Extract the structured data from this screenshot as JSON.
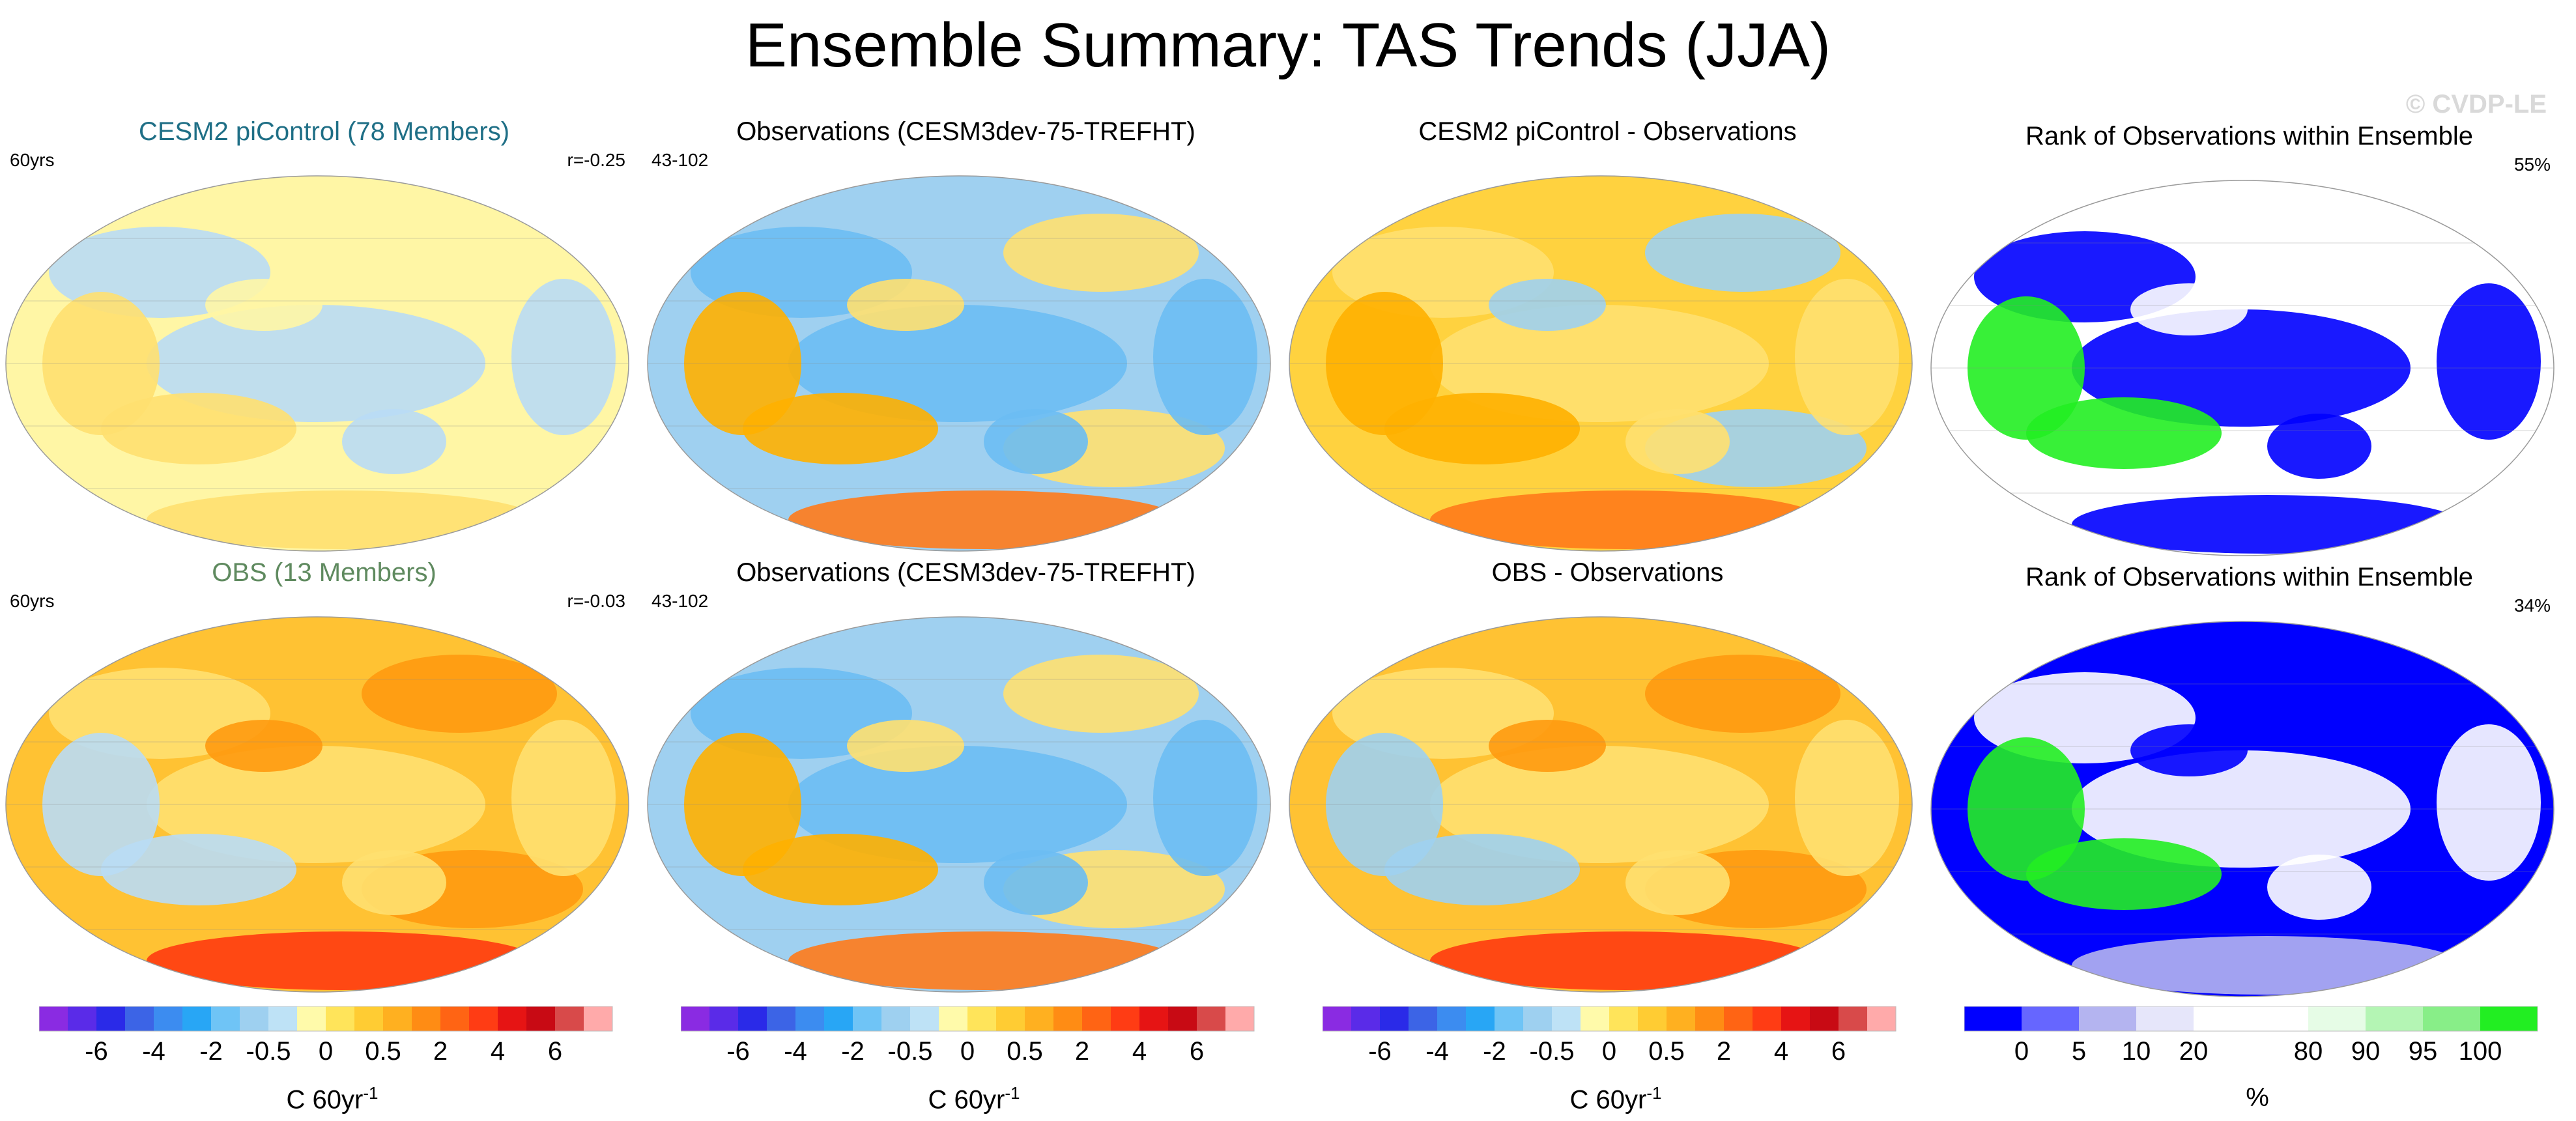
{
  "title": "Ensemble Summary: TAS Trends (JJA)",
  "watermark": "© CVDP-LE",
  "panels": [
    {
      "title": "CESM2 piControl (78 Members)",
      "left": "60yrs",
      "right": "r=-0.25",
      "colors": [
        "#fff6a5",
        "#b9dcf5",
        "#fff6a5",
        "#ffe070"
      ]
    },
    {
      "title": "Observations (CESM3dev-75-TREFHT)",
      "left": "43-102",
      "right": "",
      "colors": [
        "#9fd0f0",
        "#6cbcf3",
        "#ffe070",
        "#ffb000",
        "#ff7a1a"
      ]
    },
    {
      "title": "CESM2 piControl - Observations",
      "left": "",
      "right": "",
      "colors": [
        "#ffd23f",
        "#ffe070",
        "#9fd0f0",
        "#ffb000",
        "#ff7a1a"
      ]
    },
    {
      "title": "Rank of Observations within Ensemble",
      "left": "",
      "right": "55%",
      "colors": [
        "#ffffff",
        "#0000ff",
        "#ffffff",
        "#22ee22",
        "#0000ff"
      ]
    },
    {
      "title": "OBS (13 Members)",
      "left": "60yrs",
      "right": "r=-0.03",
      "colors": [
        "#ffc233",
        "#ffe070",
        "#ff9a10",
        "#b9dcf5",
        "#ff3b10"
      ]
    },
    {
      "title": "Observations (CESM3dev-75-TREFHT)",
      "left": "43-102",
      "right": "",
      "colors": [
        "#9fd0f0",
        "#6cbcf3",
        "#ffe070",
        "#ffb000",
        "#ff7a1a"
      ]
    },
    {
      "title": "OBS - Observations",
      "left": "",
      "right": "",
      "colors": [
        "#ffc233",
        "#ffe070",
        "#ff9a10",
        "#9fd0f0",
        "#ff3b10"
      ]
    },
    {
      "title": "Rank of Observations within Ensemble",
      "left": "",
      "right": "34%",
      "colors": [
        "#0000ff",
        "#ffffff",
        "#0000ff",
        "#22ee22",
        "#b4b4f0"
      ]
    }
  ],
  "colorbars": {
    "trend": {
      "label": "C 60yr",
      "label_sup": "-1",
      "colors": [
        "#8a2be2",
        "#5a2be8",
        "#2a2ae8",
        "#3c64e6",
        "#3c8cf0",
        "#28a6f5",
        "#6fc4f6",
        "#9ed0f0",
        "#bee2f6",
        "#fffaaa",
        "#ffe45a",
        "#ffcc33",
        "#ffb020",
        "#ff8c14",
        "#ff6414",
        "#ff3c14",
        "#e61414",
        "#c80a14",
        "#d84a4a",
        "#ffaaaa"
      ],
      "ticks": [
        {
          "label": "-6",
          "at": 2
        },
        {
          "label": "-4",
          "at": 4
        },
        {
          "label": "-2",
          "at": 6
        },
        {
          "label": "-0.5",
          "at": 8
        },
        {
          "label": "0",
          "at": 10
        },
        {
          "label": "0.5",
          "at": 12
        },
        {
          "label": "2",
          "at": 14
        },
        {
          "label": "4",
          "at": 16
        },
        {
          "label": "6",
          "at": 18
        }
      ]
    },
    "rank": {
      "label": "%",
      "colors": [
        "#0000ff",
        "#6666ff",
        "#b4b4f0",
        "#e6e6fa",
        "#ffffff",
        "#ffffff",
        "#e6fce6",
        "#b4f5b4",
        "#88ee88",
        "#22ee22"
      ],
      "ticks": [
        {
          "label": "0",
          "at": 1
        },
        {
          "label": "5",
          "at": 2
        },
        {
          "label": "10",
          "at": 3
        },
        {
          "label": "20",
          "at": 4
        },
        {
          "label": "80",
          "at": 6
        },
        {
          "label": "90",
          "at": 7
        },
        {
          "label": "95",
          "at": 8
        },
        {
          "label": "100",
          "at": 9
        }
      ]
    }
  }
}
